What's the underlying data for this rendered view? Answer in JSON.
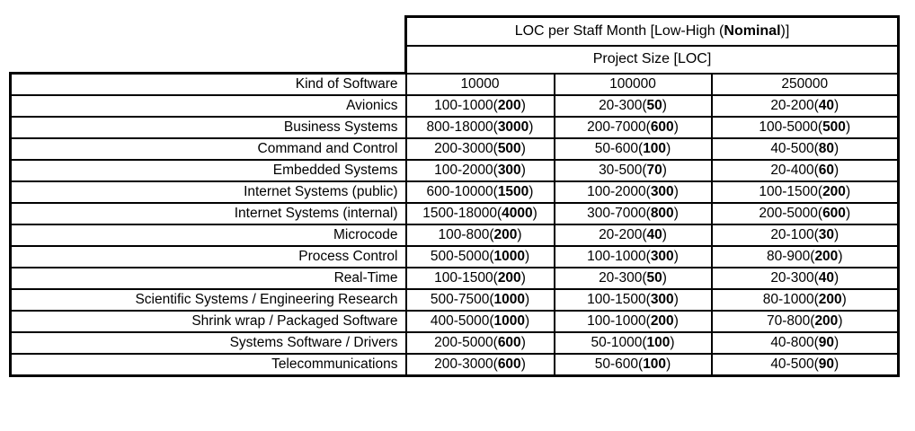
{
  "table": {
    "header1": {
      "prefix": "LOC per Staff Month [Low-High (",
      "bold": "Nominal",
      "suffix": ")]"
    },
    "header2": "Project Size [LOC]",
    "kind_header": "Kind of Software",
    "size_columns": [
      "10000",
      "100000",
      "250000"
    ],
    "rows": [
      {
        "kind": "Avionics",
        "cells": [
          {
            "range": "100-1000",
            "nominal": "200"
          },
          {
            "range": "20-300",
            "nominal": "50"
          },
          {
            "range": "20-200",
            "nominal": "40"
          }
        ]
      },
      {
        "kind": "Business Systems",
        "cells": [
          {
            "range": "800-18000",
            "nominal": "3000"
          },
          {
            "range": "200-7000",
            "nominal": "600"
          },
          {
            "range": "100-5000",
            "nominal": "500"
          }
        ]
      },
      {
        "kind": "Command and Control",
        "cells": [
          {
            "range": "200-3000",
            "nominal": "500"
          },
          {
            "range": "50-600",
            "nominal": "100"
          },
          {
            "range": "40-500",
            "nominal": "80"
          }
        ]
      },
      {
        "kind": "Embedded Systems",
        "cells": [
          {
            "range": "100-2000",
            "nominal": "300"
          },
          {
            "range": "30-500",
            "nominal": "70"
          },
          {
            "range": "20-400",
            "nominal": "60"
          }
        ]
      },
      {
        "kind": "Internet Systems (public)",
        "cells": [
          {
            "range": "600-10000",
            "nominal": "1500"
          },
          {
            "range": "100-2000",
            "nominal": "300"
          },
          {
            "range": "100-1500",
            "nominal": "200"
          }
        ]
      },
      {
        "kind": "Internet Systems (internal)",
        "cells": [
          {
            "range": "1500-18000",
            "nominal": "4000"
          },
          {
            "range": "300-7000",
            "nominal": "800"
          },
          {
            "range": "200-5000",
            "nominal": "600"
          }
        ]
      },
      {
        "kind": "Microcode",
        "cells": [
          {
            "range": "100-800",
            "nominal": "200"
          },
          {
            "range": "20-200",
            "nominal": "40"
          },
          {
            "range": "20-100",
            "nominal": "30"
          }
        ]
      },
      {
        "kind": "Process Control",
        "cells": [
          {
            "range": "500-5000",
            "nominal": "1000"
          },
          {
            "range": "100-1000",
            "nominal": "300"
          },
          {
            "range": "80-900",
            "nominal": "200"
          }
        ]
      },
      {
        "kind": "Real-Time",
        "cells": [
          {
            "range": "100-1500",
            "nominal": "200"
          },
          {
            "range": "20-300",
            "nominal": "50"
          },
          {
            "range": "20-300",
            "nominal": "40"
          }
        ]
      },
      {
        "kind": "Scientific Systems / Engineering Research",
        "cells": [
          {
            "range": "500-7500",
            "nominal": "1000"
          },
          {
            "range": "100-1500",
            "nominal": "300"
          },
          {
            "range": "80-1000",
            "nominal": "200"
          }
        ]
      },
      {
        "kind": "Shrink wrap / Packaged Software",
        "cells": [
          {
            "range": "400-5000",
            "nominal": "1000"
          },
          {
            "range": "100-1000",
            "nominal": "200"
          },
          {
            "range": "70-800",
            "nominal": "200"
          }
        ]
      },
      {
        "kind": "Systems Software / Drivers",
        "cells": [
          {
            "range": "200-5000",
            "nominal": "600"
          },
          {
            "range": "50-1000",
            "nominal": "100"
          },
          {
            "range": "40-800",
            "nominal": "90"
          }
        ]
      },
      {
        "kind": "Telecommunications",
        "cells": [
          {
            "range": "200-3000",
            "nominal": "600"
          },
          {
            "range": "50-600",
            "nominal": "100"
          },
          {
            "range": "40-500",
            "nominal": "90"
          }
        ]
      }
    ]
  },
  "colors": {
    "border": "#000000",
    "background": "#ffffff",
    "text": "#000000"
  },
  "chart_data": {
    "type": "table",
    "title": "LOC per Staff Month [Low-High (Nominal)]",
    "group_header": "Project Size [LOC]",
    "columns": [
      "Kind of Software",
      "10000",
      "100000",
      "250000"
    ],
    "rows": [
      [
        "Avionics",
        "100-1000(200)",
        "20-300(50)",
        "20-200(40)"
      ],
      [
        "Business Systems",
        "800-18000(3000)",
        "200-7000(600)",
        "100-5000(500)"
      ],
      [
        "Command and Control",
        "200-3000(500)",
        "50-600(100)",
        "40-500(80)"
      ],
      [
        "Embedded Systems",
        "100-2000(300)",
        "30-500(70)",
        "20-400(60)"
      ],
      [
        "Internet Systems (public)",
        "600-10000(1500)",
        "100-2000(300)",
        "100-1500(200)"
      ],
      [
        "Internet Systems (internal)",
        "1500-18000(4000)",
        "300-7000(800)",
        "200-5000(600)"
      ],
      [
        "Microcode",
        "100-800(200)",
        "20-200(40)",
        "20-100(30)"
      ],
      [
        "Process Control",
        "500-5000(1000)",
        "100-1000(300)",
        "80-900(200)"
      ],
      [
        "Real-Time",
        "100-1500(200)",
        "20-300(50)",
        "20-300(40)"
      ],
      [
        "Scientific Systems / Engineering Research",
        "500-7500(1000)",
        "100-1500(300)",
        "80-1000(200)"
      ],
      [
        "Shrink wrap / Packaged Software",
        "400-5000(1000)",
        "100-1000(200)",
        "70-800(200)"
      ],
      [
        "Systems Software / Drivers",
        "200-5000(600)",
        "50-1000(100)",
        "40-800(90)"
      ],
      [
        "Telecommunications",
        "200-3000(600)",
        "50-600(100)",
        "40-500(90)"
      ]
    ]
  }
}
